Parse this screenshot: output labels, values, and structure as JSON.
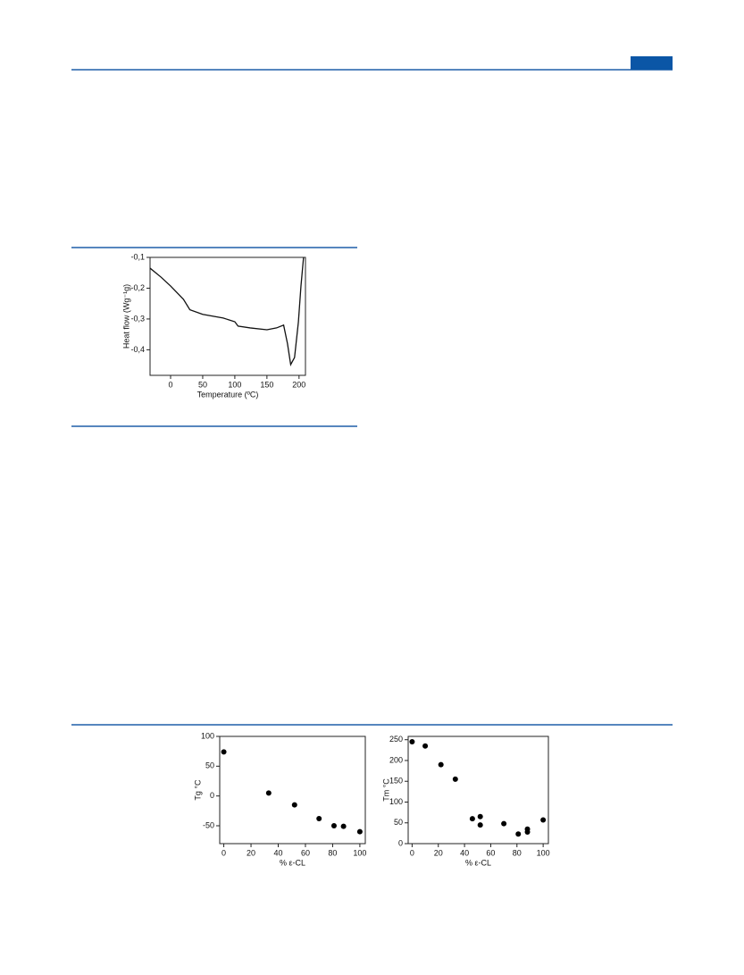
{
  "chart_data": [
    {
      "type": "line",
      "x_label": "Temperature (ºC)",
      "y_label": "Heat flow (Wg⁻¹g)",
      "x": [
        -32,
        -15,
        0,
        20,
        30,
        50,
        82,
        100,
        105,
        124,
        150,
        165,
        176,
        182,
        187,
        193,
        199,
        203,
        207
      ],
      "values": [
        -0.135,
        -0.164,
        -0.193,
        -0.236,
        -0.27,
        -0.285,
        -0.297,
        -0.309,
        -0.323,
        -0.329,
        -0.335,
        -0.329,
        -0.32,
        -0.38,
        -0.448,
        -0.425,
        -0.31,
        -0.193,
        -0.1
      ],
      "color": "#111111",
      "xlim": [
        -32,
        210
      ],
      "xticks": [
        0,
        50,
        100,
        150,
        200
      ],
      "ylim": [
        -0.483,
        -0.1
      ],
      "yticks": [
        {
          "value": -0.1,
          "label": "-0,1"
        },
        {
          "value": -0.2,
          "label": "-0,2"
        },
        {
          "value": -0.3,
          "label": "-0,3"
        },
        {
          "value": -0.4,
          "label": "-0,4"
        }
      ]
    },
    {
      "type": "scatter",
      "x_label": "% ε-CL",
      "y_label": "Tg °C",
      "x": [
        0,
        33,
        52,
        70,
        81,
        88,
        100
      ],
      "values": [
        74,
        5,
        -15,
        -38,
        -50,
        -51,
        -60
      ],
      "color": "#000000",
      "xlim": [
        -3,
        104
      ],
      "xticks": [
        0,
        20,
        40,
        60,
        80,
        100
      ],
      "ylim": [
        -80,
        100
      ],
      "yticks": [
        -50,
        0,
        50,
        100
      ]
    },
    {
      "type": "scatter",
      "x_label": "% ε-CL",
      "y_label": "Tm °C",
      "x": [
        0,
        10,
        22,
        33,
        46,
        52,
        52,
        70,
        81,
        88,
        88,
        100
      ],
      "values": [
        245,
        235,
        190,
        155,
        60,
        45,
        65,
        48,
        23,
        28,
        35,
        57
      ],
      "color": "#000000",
      "xlim": [
        -3,
        104
      ],
      "xticks": [
        0,
        20,
        40,
        60,
        80,
        100
      ],
      "ylim": [
        0,
        258
      ],
      "yticks": [
        0,
        50,
        100,
        150,
        200,
        250
      ]
    }
  ]
}
